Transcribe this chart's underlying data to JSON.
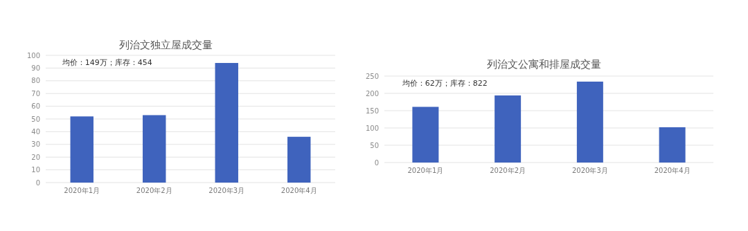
{
  "chart_data": [
    {
      "type": "bar",
      "title": "列治文独立屋成交量",
      "categories": [
        "2020年1月",
        "2020年2月",
        "2020年3月",
        "2020年4月"
      ],
      "values": [
        52,
        53,
        94,
        36
      ],
      "color": "#3f63bd",
      "ylim": [
        0,
        100
      ],
      "yticks": [
        0,
        10,
        20,
        30,
        40,
        50,
        60,
        70,
        80,
        90,
        100
      ],
      "grid": "y",
      "annotations": [
        "均价：149万；库存：454"
      ]
    },
    {
      "type": "bar",
      "title": "列治文公寓和排屋成交量",
      "categories": [
        "2020年1月",
        "2020年2月",
        "2020年3月",
        "2020年4月"
      ],
      "values": [
        161,
        194,
        234,
        102
      ],
      "color": "#3f63bd",
      "ylim": [
        0,
        250
      ],
      "yticks": [
        0,
        50,
        100,
        150,
        200,
        250
      ],
      "grid": "y",
      "annotations": [
        "均价：62万；库存：822"
      ]
    }
  ]
}
